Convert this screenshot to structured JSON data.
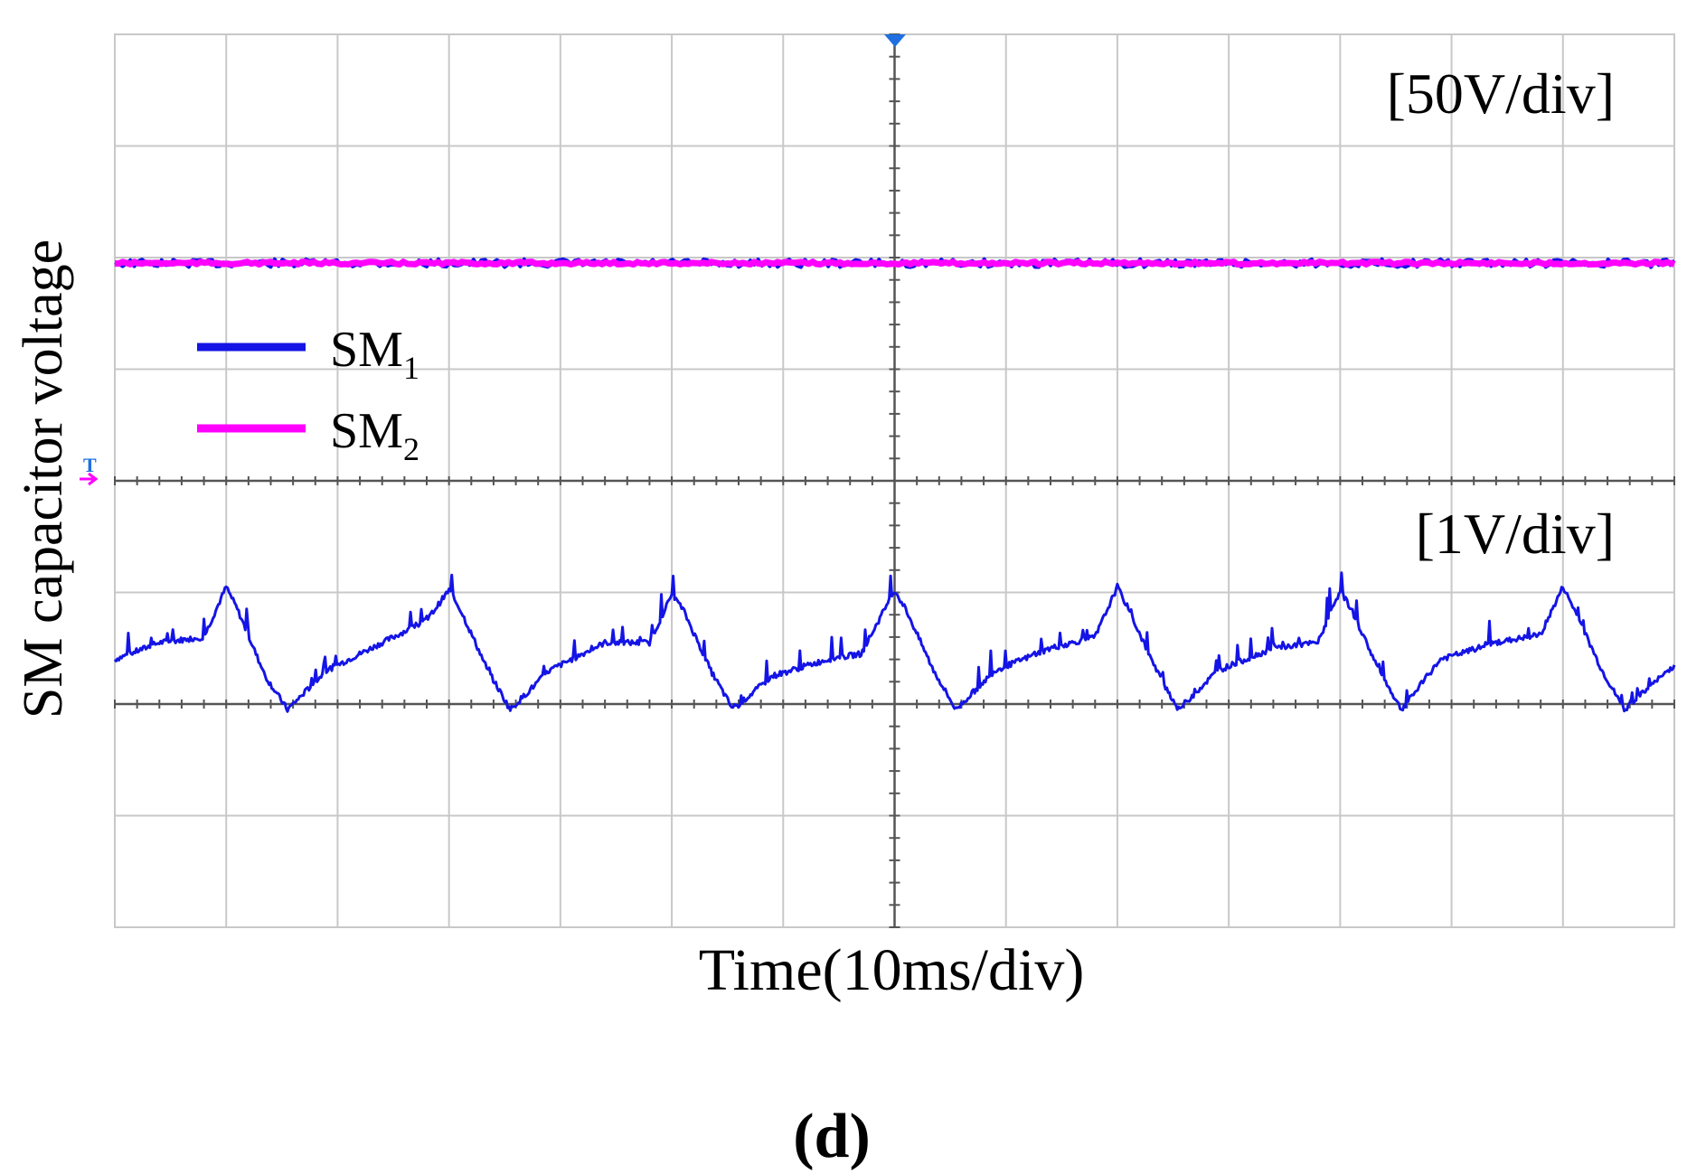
{
  "chart_data": {
    "type": "line",
    "panel_label": "(d)",
    "xlabel": "Time(10ms/div)",
    "ylabel": "SM capacitor voltage",
    "grid": true,
    "divisions": {
      "x": 14,
      "y": 8
    },
    "x_unit": "ms",
    "x_per_div": 10,
    "xlim": [
      0,
      140
    ],
    "upper_channel": {
      "scale_label": "[50V/div]",
      "reference_div_from_top": 4,
      "level_div_above_reference": 1.95
    },
    "lower_channel": {
      "scale_label": "[1V/div]",
      "reference_div_from_top": 6,
      "unit": "V"
    },
    "legend": {
      "placement": "left-middle"
    },
    "trigger_marker": "T",
    "series": [
      {
        "name": "SM",
        "subscript": "1",
        "color": "#1414e6",
        "channel": "upper",
        "values_div": 1.95
      },
      {
        "name": "SM",
        "subscript": "2",
        "color": "#ff00ff",
        "channel": "upper",
        "values_div": 1.95
      },
      {
        "name": "SM",
        "subscript": "1",
        "color": "#1414e6",
        "channel": "lower",
        "unit": "V",
        "points": [
          [
            0,
            0.4
          ],
          [
            4,
            0.55
          ],
          [
            8,
            0.6
          ],
          [
            10,
            1.05
          ],
          [
            11,
            0.85
          ],
          [
            13.5,
            0.25
          ],
          [
            15.5,
            -0.05
          ],
          [
            19,
            0.3
          ],
          [
            24,
            0.55
          ],
          [
            28,
            0.75
          ],
          [
            30,
            1.02
          ],
          [
            31,
            0.85
          ],
          [
            33.5,
            0.3
          ],
          [
            35.5,
            -0.05
          ],
          [
            39,
            0.3
          ],
          [
            44,
            0.55
          ],
          [
            48,
            0.55
          ],
          [
            50,
            0.98
          ],
          [
            51,
            0.85
          ],
          [
            53.5,
            0.3
          ],
          [
            55.5,
            -0.05
          ],
          [
            59,
            0.25
          ],
          [
            64,
            0.4
          ],
          [
            67,
            0.45
          ],
          [
            70,
            1.02
          ],
          [
            71,
            0.85
          ],
          [
            73.5,
            0.3
          ],
          [
            75.5,
            -0.05
          ],
          [
            79,
            0.3
          ],
          [
            84,
            0.5
          ],
          [
            88,
            0.6
          ],
          [
            90,
            1.05
          ],
          [
            91,
            0.85
          ],
          [
            93.5,
            0.3
          ],
          [
            95.5,
            -0.05
          ],
          [
            99,
            0.3
          ],
          [
            104,
            0.5
          ],
          [
            108,
            0.55
          ],
          [
            110,
            1.02
          ],
          [
            111,
            0.85
          ],
          [
            113.5,
            0.3
          ],
          [
            115.5,
            -0.05
          ],
          [
            119,
            0.4
          ],
          [
            124,
            0.55
          ],
          [
            128,
            0.62
          ],
          [
            130,
            1.05
          ],
          [
            131,
            0.85
          ],
          [
            133.5,
            0.3
          ],
          [
            135.5,
            -0.05
          ],
          [
            140,
            0.35
          ]
        ]
      }
    ]
  }
}
